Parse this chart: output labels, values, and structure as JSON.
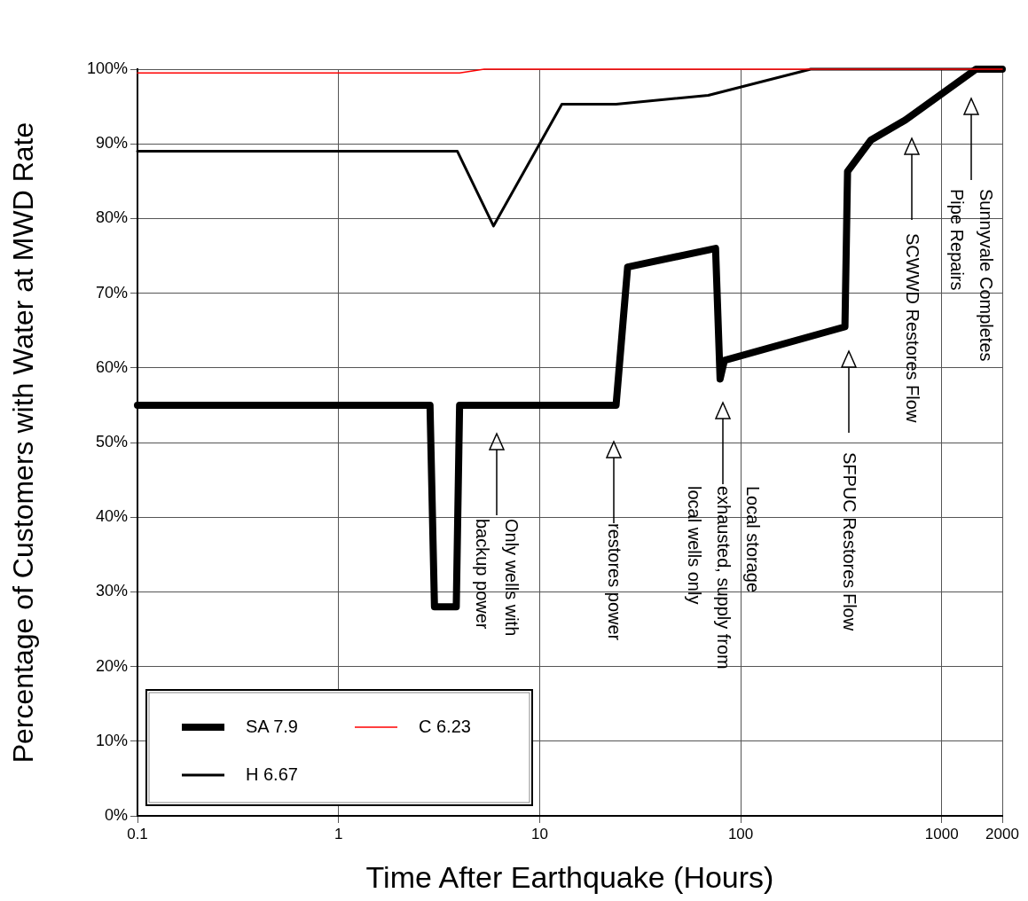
{
  "chart_data": {
    "type": "line",
    "xlabel": "Time After Earthquake (Hours)",
    "ylabel": "Percentage of Customers with Water at MWD Rate",
    "log": "x",
    "grid": true,
    "legend": "bottom left",
    "marker": "none",
    "line_style": "solid",
    "xlim": [
      0.1,
      2000
    ],
    "xticks": [
      0.1,
      1,
      10,
      100,
      1000,
      2000
    ],
    "ylim": [
      0,
      100
    ],
    "yticks": [
      {
        "value": 0,
        "label": "0%"
      },
      {
        "value": 10,
        "label": "10%"
      },
      {
        "value": 20,
        "label": "20%"
      },
      {
        "value": 30,
        "label": "30%"
      },
      {
        "value": 40,
        "label": "40%"
      },
      {
        "value": 50,
        "label": "50%"
      },
      {
        "value": 60,
        "label": "60%"
      },
      {
        "value": 70,
        "label": "70%"
      },
      {
        "value": 80,
        "label": "80%"
      },
      {
        "value": 90,
        "label": "90%"
      },
      {
        "value": 100,
        "label": "100%"
      }
    ],
    "series": [
      {
        "name": "SA 7.9",
        "color": "#000000",
        "x": [
          0.1,
          2.85,
          3.0,
          3.85,
          4.0,
          24,
          27.4,
          75,
          79,
          83,
          330,
          340,
          444,
          660,
          1480,
          2000
        ],
        "values": [
          55,
          55,
          28,
          28,
          55,
          55,
          73.5,
          76,
          58.5,
          61,
          65.5,
          86.3,
          90.5,
          93.2,
          100,
          100
        ]
      },
      {
        "name": "H 6.67",
        "color": "#000000",
        "x": [
          0.1,
          3.9,
          5.9,
          12.9,
          24,
          69,
          223,
          2000
        ],
        "values": [
          89,
          89,
          79,
          95.3,
          95.3,
          96.5,
          100,
          100
        ]
      },
      {
        "name": "C 6.23",
        "color": "#ff0000",
        "x": [
          0.1,
          4,
          5.3,
          2000
        ],
        "values": [
          99.5,
          99.5,
          100,
          100
        ]
      }
    ],
    "annotations": [
      "Only wells with\nbackup power",
      "restores power",
      "Local storage\nexhausted, supply from\nlocal wells only",
      "SFPUC Restores Flow",
      "SCWWD Restores Flow",
      "Sunnyvale Completes\nPipe Repairs"
    ]
  }
}
